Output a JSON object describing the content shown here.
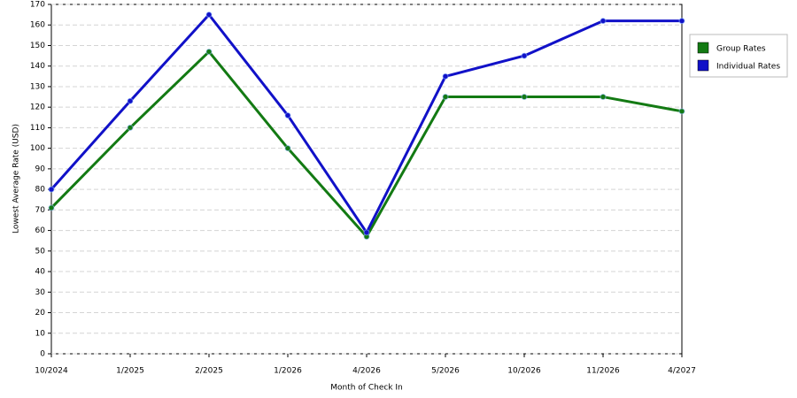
{
  "chart_data": {
    "type": "line",
    "x_label": "Month of Check In",
    "y_label": "Lowest Average Rate (USD)",
    "categories": [
      "10/2024",
      "1/2025",
      "2/2025",
      "1/2026",
      "4/2026",
      "5/2026",
      "10/2026",
      "11/2026",
      "4/2027"
    ],
    "series": [
      {
        "name": "Group Rates",
        "color": "#137a13",
        "values": [
          71,
          110,
          147,
          100,
          57,
          125,
          125,
          125,
          118
        ]
      },
      {
        "name": "Individual Rates",
        "color": "#1111c8",
        "values": [
          80,
          123,
          165,
          116,
          59,
          135,
          145,
          162,
          162
        ]
      }
    ],
    "ylim": [
      0,
      170
    ],
    "yticks": [
      0,
      10,
      20,
      30,
      40,
      50,
      60,
      70,
      80,
      90,
      100,
      110,
      120,
      130,
      140,
      150,
      160,
      170
    ],
    "grid": true,
    "legend": "upper right"
  }
}
